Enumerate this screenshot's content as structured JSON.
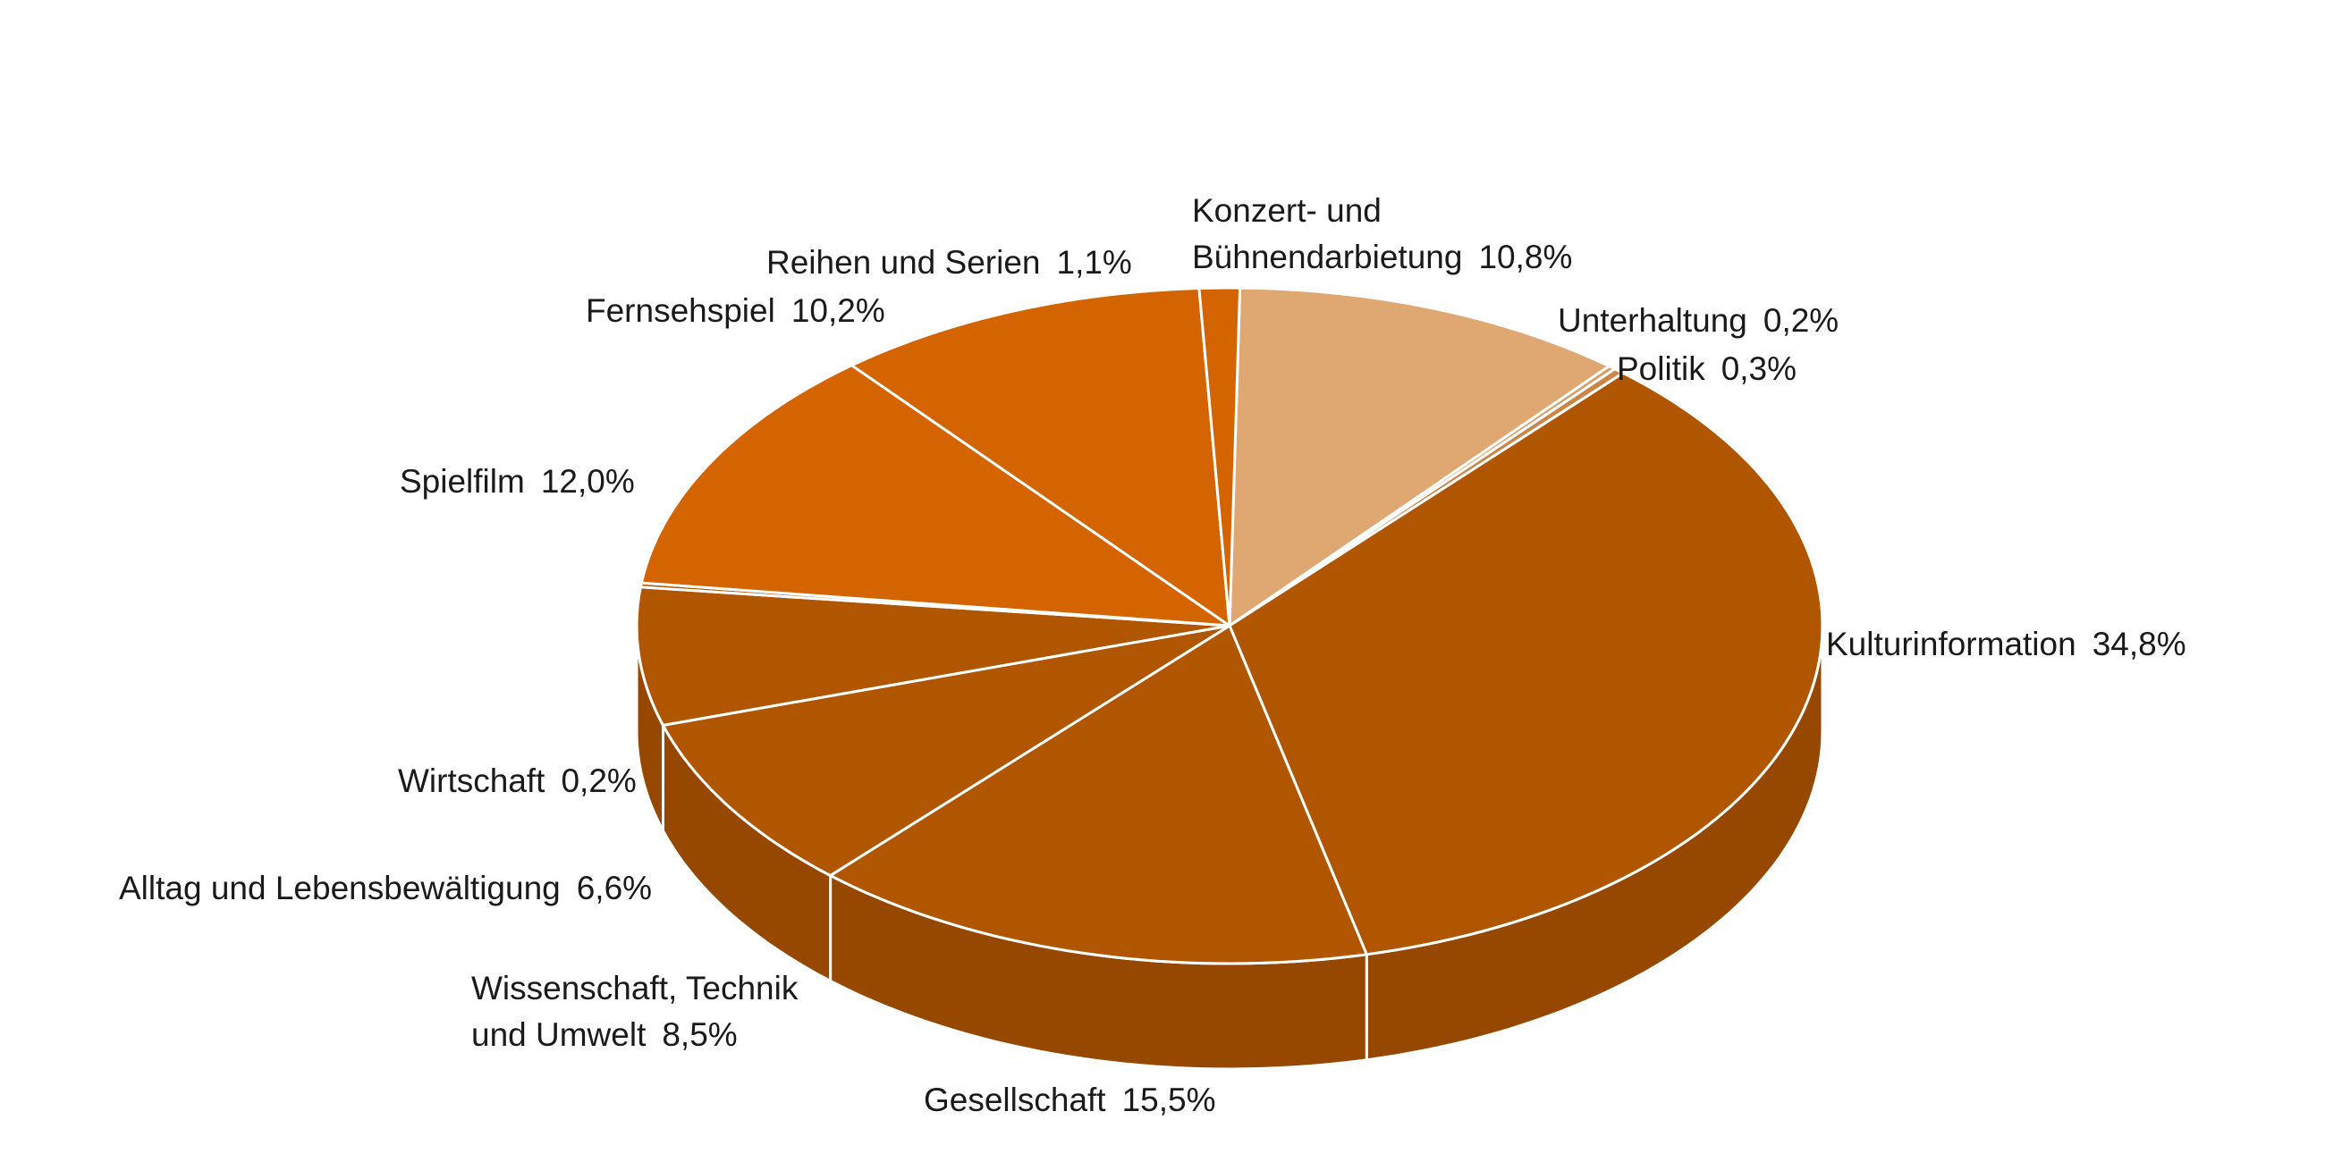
{
  "chart_data": {
    "type": "pie3d",
    "categories": [
      "Konzert- und\nBühnendarbietung",
      "Unterhaltung",
      "Politik",
      "Kulturinformation",
      "Gesellschaft",
      "Wissenschaft, Technik\nund Umwelt",
      "Alltag und Lebensbewältigung",
      "Wirtschaft",
      "Spielfilm",
      "Fernsehspiel",
      "Reihen und Serien"
    ],
    "values": [
      10.8,
      0.2,
      0.3,
      34.8,
      15.5,
      8.5,
      6.6,
      0.2,
      12.0,
      10.2,
      1.1
    ],
    "value_labels": [
      "10,8%",
      "0,2%",
      "0,3%",
      "34,8%",
      "15,5%",
      "8,5%",
      "6,6%",
      "0,2%",
      "12,0%",
      "10,2%",
      "1,1%"
    ],
    "colors": [
      "#dfa873",
      "#d99c62",
      "#c98648",
      "#b05500",
      "#b05500",
      "#b05500",
      "#b05500",
      "#b05500",
      "#d46400",
      "#d46400",
      "#d46400"
    ]
  }
}
